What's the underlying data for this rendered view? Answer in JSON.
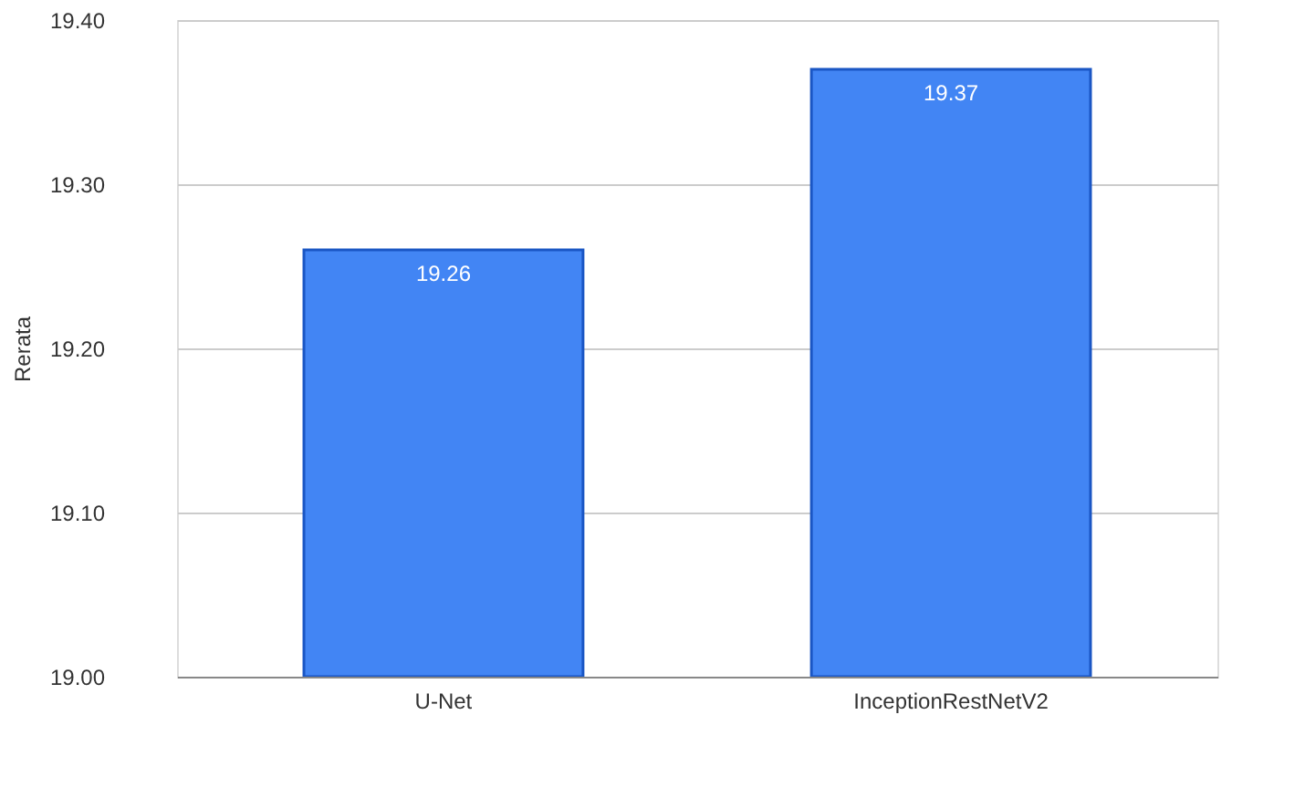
{
  "chart_data": {
    "type": "bar",
    "ylabel": "Rerata",
    "categories": [
      "U-Net",
      "InceptionRestNetV2"
    ],
    "values": [
      19.26,
      19.37
    ],
    "color": "#4285f4",
    "ylim": [
      19.0,
      19.4
    ],
    "yticks": [
      {
        "value": 19.0,
        "label": "19.00"
      },
      {
        "value": 19.1,
        "label": "19.10"
      },
      {
        "value": 19.2,
        "label": "19.20"
      },
      {
        "value": 19.3,
        "label": "19.30"
      },
      {
        "value": 19.4,
        "label": "19.40"
      }
    ],
    "grid": "y",
    "data_labels": true
  }
}
